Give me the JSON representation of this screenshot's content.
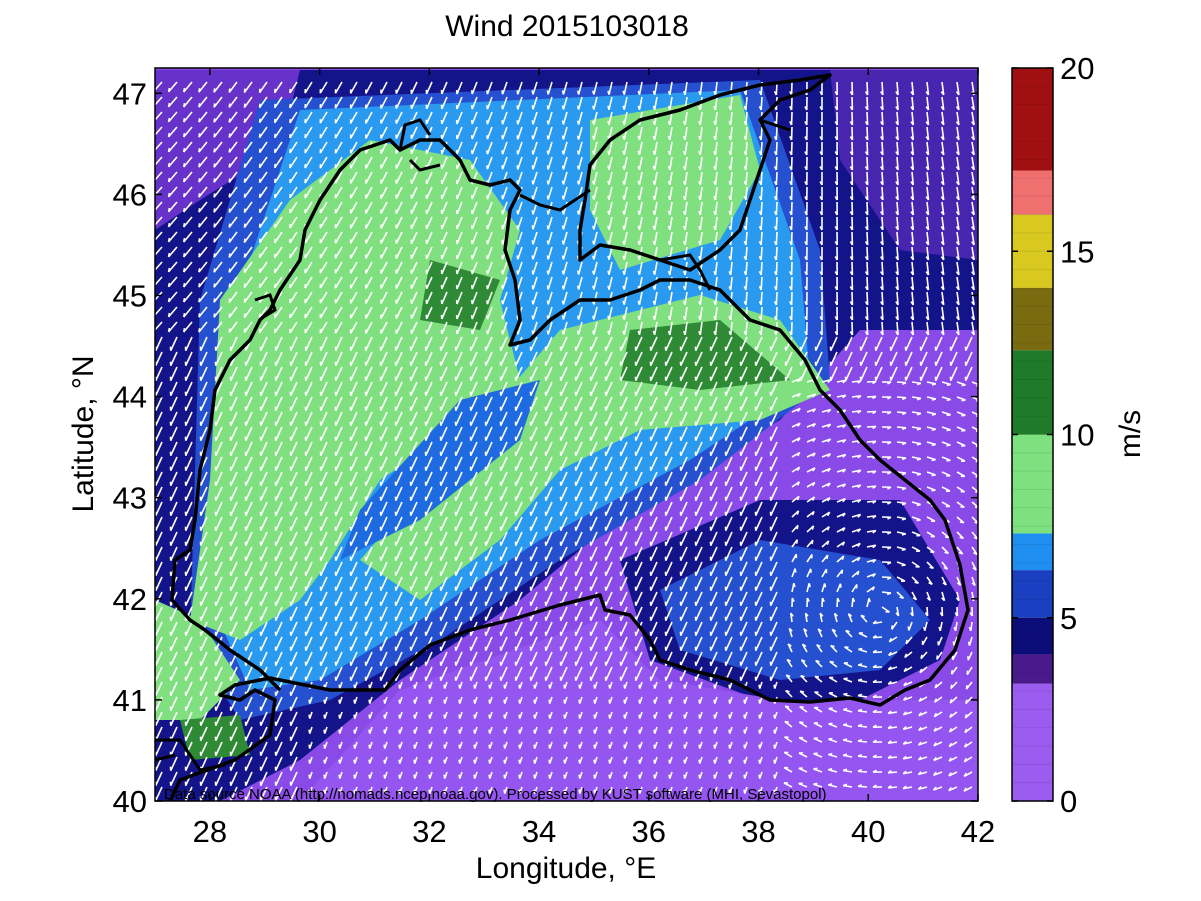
{
  "title": "Wind 2015103018",
  "x_axis": {
    "label": "Longitude, °E",
    "ticks": [
      "28",
      "30",
      "32",
      "34",
      "36",
      "38",
      "40",
      "42"
    ],
    "range": [
      27,
      42
    ]
  },
  "y_axis": {
    "label": "Latitude, °N",
    "ticks": [
      "40",
      "41",
      "42",
      "43",
      "44",
      "45",
      "46",
      "47"
    ],
    "range": [
      40,
      47.25
    ]
  },
  "colorbar": {
    "label": "m/s",
    "ticks": [
      "0",
      "5",
      "10",
      "15",
      "20"
    ],
    "range": [
      0,
      20
    ],
    "bands": [
      {
        "from": 0,
        "to": 3.2,
        "color": "#9b5cf0"
      },
      {
        "from": 3.2,
        "to": 4.0,
        "color": "#4a1a8c"
      },
      {
        "from": 4.0,
        "to": 5.0,
        "color": "#0d0d7a"
      },
      {
        "from": 5.0,
        "to": 6.3,
        "color": "#1a3fc0"
      },
      {
        "from": 6.3,
        "to": 7.3,
        "color": "#1e8ff0"
      },
      {
        "from": 7.3,
        "to": 10.0,
        "color": "#7ee07e"
      },
      {
        "from": 10.0,
        "to": 12.3,
        "color": "#1f7a2a"
      },
      {
        "from": 12.3,
        "to": 14.0,
        "color": "#7a6a10"
      },
      {
        "from": 14.0,
        "to": 16.0,
        "color": "#d8c820"
      },
      {
        "from": 16.0,
        "to": 17.2,
        "color": "#f07070"
      },
      {
        "from": 17.2,
        "to": 20.0,
        "color": "#a01010"
      }
    ]
  },
  "source_note": "Data source NOAA (http://nomads.ncep.noaa.gov). Processed by KUST software (MHI, Sevastopol)",
  "colors": {
    "background_field": "#8a4ae8",
    "coastline": "#000000",
    "arrows": "#ffffff"
  }
}
